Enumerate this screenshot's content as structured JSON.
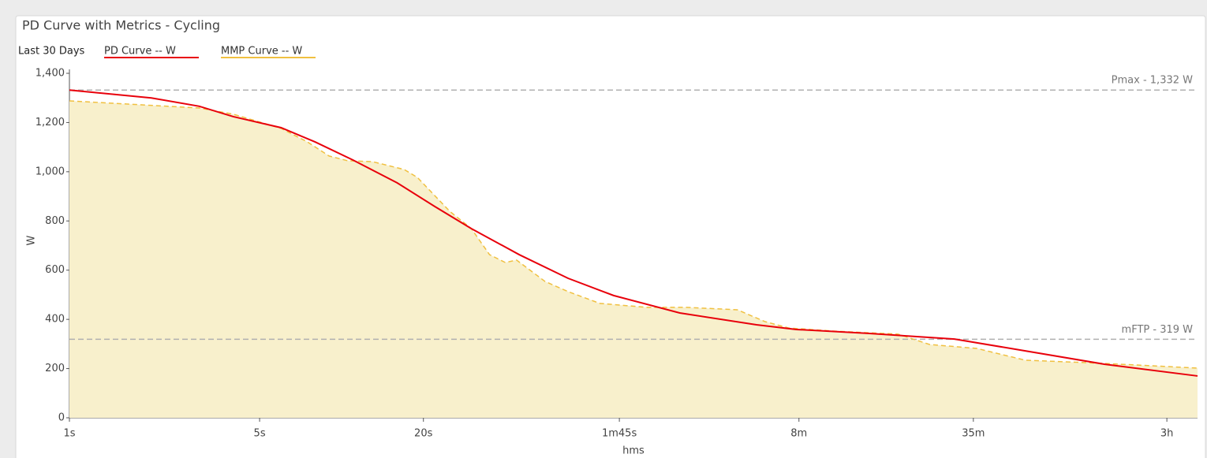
{
  "chart_data": {
    "type": "line",
    "title": "PD Curve with Metrics - Cycling",
    "period": "Last 30 Days",
    "x_label": "hms",
    "y_label": "W",
    "log_x": true,
    "grid": false,
    "xlim": [
      1,
      14000
    ],
    "ylim": [
      0,
      1400
    ],
    "xticks": [
      {
        "value": 1,
        "label": "1s"
      },
      {
        "value": 5,
        "label": "5s"
      },
      {
        "value": 20,
        "label": "20s"
      },
      {
        "value": 105,
        "label": "1m45s"
      },
      {
        "value": 480,
        "label": "8m"
      },
      {
        "value": 2100,
        "label": "35m"
      },
      {
        "value": 10800,
        "label": "3h"
      }
    ],
    "yticks": [
      0,
      200,
      400,
      600,
      800,
      {
        "value": 1000,
        "label": "1,000"
      },
      {
        "value": 1200,
        "label": "1,200"
      },
      {
        "value": 1400,
        "label": "1,400"
      }
    ],
    "reference_lines": [
      {
        "value": 1332,
        "label": "Pmax - 1,332 W"
      },
      {
        "value": 319,
        "label": "mFTP - 319 W"
      }
    ],
    "series": [
      {
        "name": "PD Curve  -- W",
        "color": "#e8000b",
        "style": "solid",
        "x": [
          1,
          2,
          3,
          4,
          6,
          8,
          11,
          16,
          22,
          30,
          45,
          68,
          100,
          175,
          335,
          470,
          860,
          1790,
          3260,
          6350,
          14000
        ],
        "values": [
          1332,
          1300,
          1266,
          1224,
          1179,
          1121,
          1048,
          955,
          859,
          769,
          663,
          567,
          497,
          426,
          378,
          359,
          343,
          320,
          272,
          218,
          170
        ]
      },
      {
        "name": "MMP Curve  -- W",
        "color": "#f0c040",
        "style": "dashed",
        "fill": "#f8f0cc",
        "x": [
          1,
          3,
          4,
          6,
          7.5,
          9,
          10.5,
          13,
          17,
          19,
          25,
          30,
          35,
          40,
          44,
          56,
          68,
          89,
          132,
          184,
          285,
          360,
          440,
          655,
          1110,
          1450,
          2160,
          3260,
          5520,
          8200,
          14000
        ],
        "values": [
          1288,
          1259,
          1234,
          1176,
          1121,
          1064,
          1045,
          1041,
          1009,
          977,
          839,
          769,
          663,
          631,
          641,
          554,
          513,
          465,
          449,
          449,
          439,
          391,
          365,
          352,
          340,
          298,
          282,
          234,
          224,
          215,
          202
        ]
      }
    ]
  }
}
